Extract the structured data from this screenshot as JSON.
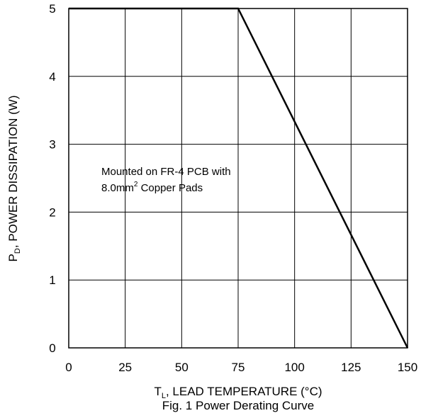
{
  "chart_data": {
    "type": "line",
    "caption": "Fig. 1 Power Derating Curve",
    "xlabel": {
      "prefix": "T",
      "sub": "L",
      "rest": ", LEAD TEMPERATURE (°C)"
    },
    "ylabel": {
      "prefix": "P",
      "sub": "D",
      "rest": ", POWER DISSIPATION (W)"
    },
    "xlim": [
      0,
      150
    ],
    "ylim": [
      0,
      5
    ],
    "xticks": [
      "0",
      "25",
      "50",
      "75",
      "100",
      "125",
      "150"
    ],
    "yticks": [
      "0",
      "1",
      "2",
      "3",
      "4",
      "5"
    ],
    "grid": true,
    "annotation": {
      "line1": "Mounted on FR-4 PCB with",
      "line2_text": "8.0mm",
      "line2_sup": "2",
      "line2_rest": " Copper Pads"
    },
    "series": [
      {
        "x": [
          0,
          75,
          150
        ],
        "y": [
          5,
          5,
          0
        ],
        "color": "#000000"
      }
    ]
  }
}
